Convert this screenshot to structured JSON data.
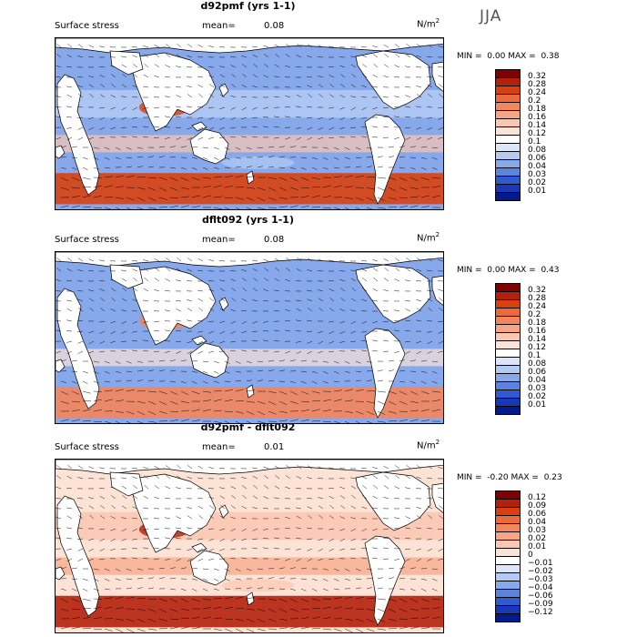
{
  "season": "JJA",
  "panels": [
    {
      "id": "p1",
      "title": "d92pmf (yrs 1-1)",
      "variable": "Surface stress",
      "mean_label": "mean=",
      "mean_value": "0.08",
      "units_base": "N/m",
      "units_exp": "2",
      "min_label": "MIN =",
      "min_value": "0.00",
      "max_label": "MAX =",
      "max_value": "0.38",
      "legend": {
        "ticks": [
          "0.32",
          "0.28",
          "0.24",
          "0.2",
          "0.18",
          "0.16",
          "0.14",
          "0.12",
          "0.1",
          "0.08",
          "0.06",
          "0.04",
          "0.03",
          "0.02",
          "0.01"
        ],
        "colors": [
          "#7f0000",
          "#b3200c",
          "#d9400f",
          "#ec6a3a",
          "#f4855c",
          "#f7a585",
          "#fbc7b1",
          "#fde3d6",
          "#ffffff",
          "#dbe6fb",
          "#b4caf3",
          "#87a8eb",
          "#5a84e0",
          "#2f5bd0",
          "#1838b8",
          "#031a8c"
        ]
      },
      "map_field": {
        "tropics_level": 0.06,
        "southern_ocean_level": 0.24,
        "trade_wind_level": 0.14,
        "background_level": 0.05
      }
    },
    {
      "id": "p2",
      "title": "dflt092 (yrs 1-1)",
      "variable": "Surface stress",
      "mean_label": "mean=",
      "mean_value": "0.08",
      "units_base": "N/m",
      "units_exp": "2",
      "min_label": "MIN =",
      "min_value": "0.00",
      "max_label": "MAX =",
      "max_value": "0.43",
      "legend": {
        "ticks": [
          "0.32",
          "0.28",
          "0.24",
          "0.2",
          "0.18",
          "0.16",
          "0.14",
          "0.12",
          "0.1",
          "0.08",
          "0.06",
          "0.04",
          "0.03",
          "0.02",
          "0.01"
        ],
        "colors": [
          "#7f0000",
          "#b3200c",
          "#d9400f",
          "#ec6a3a",
          "#f4855c",
          "#f7a585",
          "#fbc7b1",
          "#fde3d6",
          "#ffffff",
          "#dbe6fb",
          "#b4caf3",
          "#87a8eb",
          "#5a84e0",
          "#2f5bd0",
          "#1838b8",
          "#031a8c"
        ]
      },
      "map_field": {
        "tropics_level": 0.05,
        "southern_ocean_level": 0.18,
        "trade_wind_level": 0.12,
        "background_level": 0.04
      }
    },
    {
      "id": "p3",
      "title": "d92pmf - dflt092",
      "variable": "Surface stress",
      "mean_label": "mean=",
      "mean_value": "0.01",
      "units_base": "N/m",
      "units_exp": "2",
      "min_label": "MIN =",
      "min_value": "-0.20",
      "max_label": "MAX =",
      "max_value": "0.23",
      "legend": {
        "ticks": [
          "0.12",
          "0.09",
          "0.06",
          "0.04",
          "0.03",
          "0.02",
          "0.01",
          "0",
          "−0.01",
          "−0.02",
          "−0.03",
          "−0.04",
          "−0.06",
          "−0.09",
          "−0.12"
        ],
        "colors": [
          "#7f0000",
          "#b3200c",
          "#d9400f",
          "#ec6a3a",
          "#f4855c",
          "#f7a585",
          "#fbc7b1",
          "#fde3d6",
          "#ffffff",
          "#dbe6fb",
          "#b4caf3",
          "#87a8eb",
          "#5a84e0",
          "#2f5bd0",
          "#1838b8",
          "#031a8c"
        ]
      },
      "map_field": {
        "tropics_level": 0.01,
        "southern_ocean_level": 0.09,
        "trade_wind_level": 0.02,
        "background_level": 0.005
      }
    }
  ]
}
